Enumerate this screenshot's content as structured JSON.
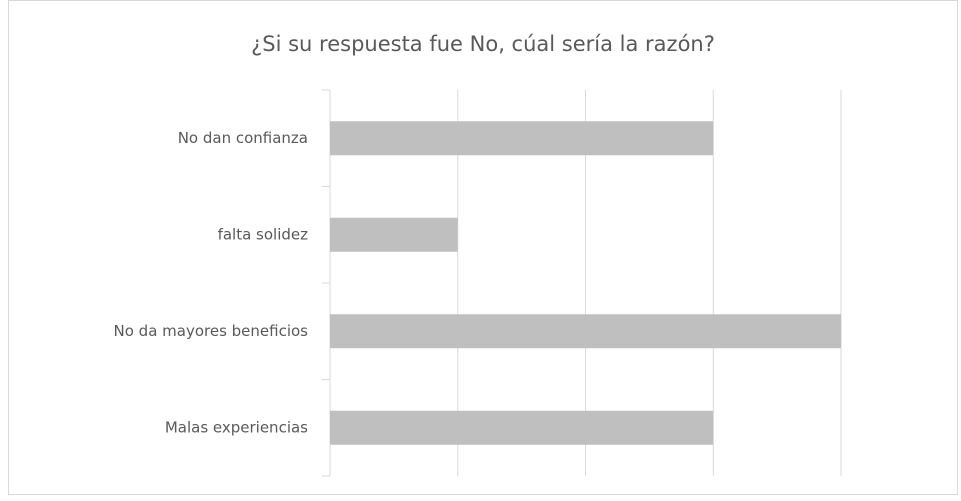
{
  "chart_data": {
    "type": "bar",
    "orientation": "horizontal",
    "title": "¿Si su respuesta fue No, cúal sería la razón?",
    "categories": [
      "No dan confianza",
      "falta solidez",
      "No da mayores beneficios",
      "Malas experiencias"
    ],
    "values": [
      3,
      1,
      4,
      3
    ],
    "color": "#bfbfbf",
    "xlim": [
      0,
      4
    ],
    "xticks": [
      0,
      1,
      2,
      3,
      4
    ],
    "grid": true
  }
}
